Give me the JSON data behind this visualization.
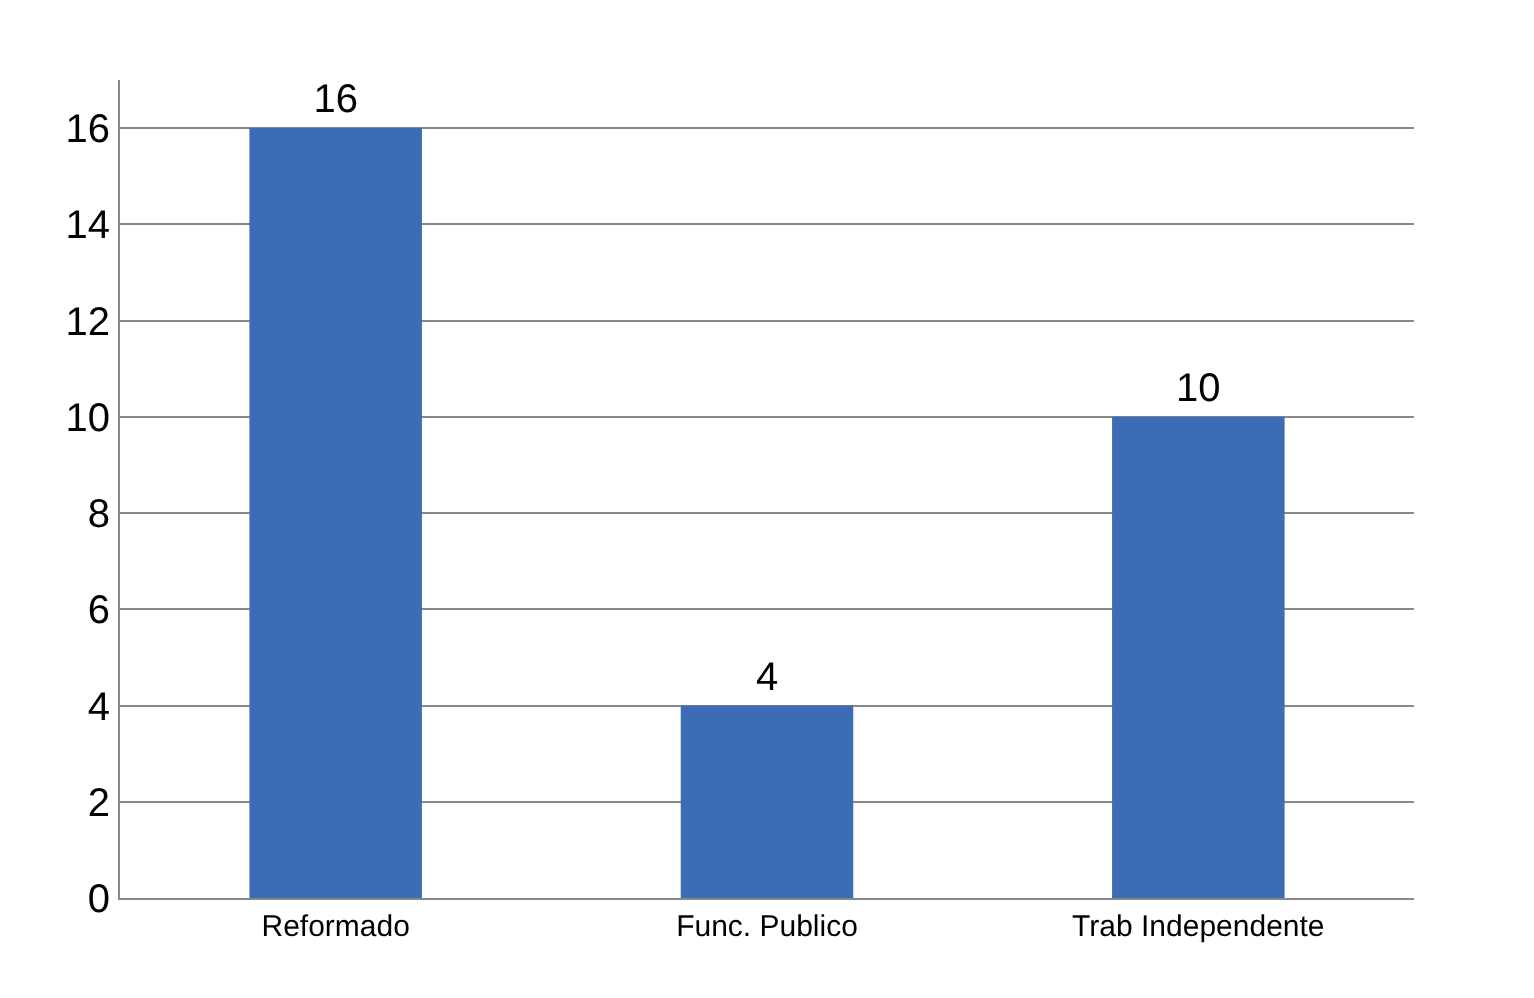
{
  "chart_data": {
    "type": "bar",
    "categories": [
      "Reformado",
      "Func. Publico",
      "Trab Independente"
    ],
    "values": [
      16,
      4,
      10
    ],
    "color": "#3b6cb4",
    "ylim": [
      0,
      17
    ],
    "yticks": [
      0,
      2,
      4,
      6,
      8,
      10,
      12,
      14,
      16
    ],
    "grid": "y",
    "data_labels": true
  }
}
